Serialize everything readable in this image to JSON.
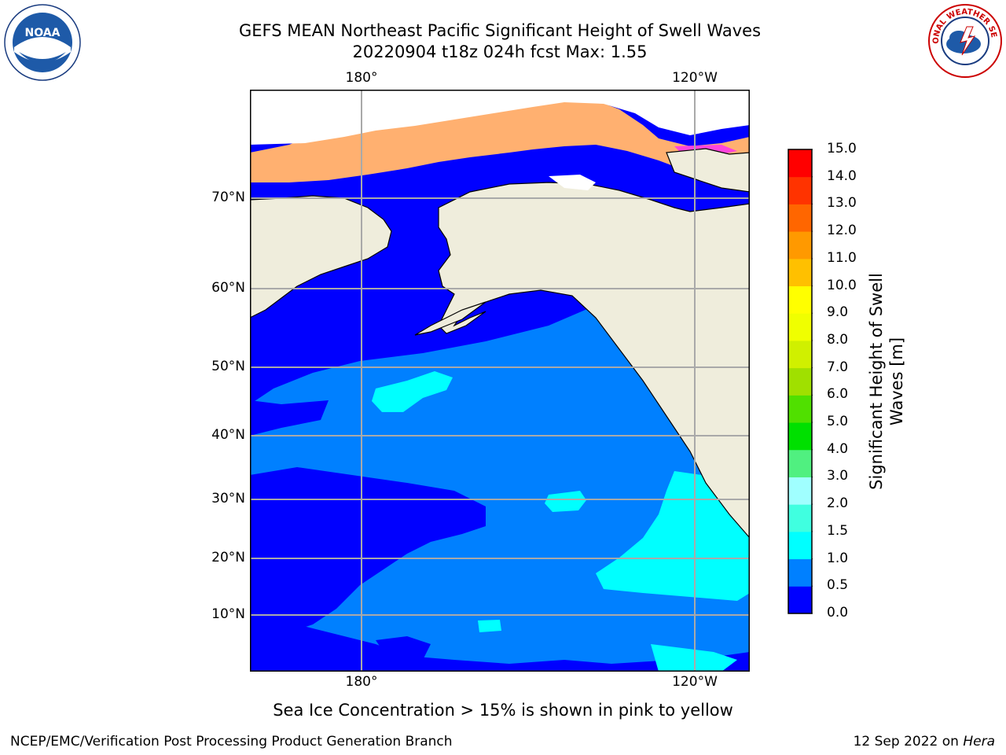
{
  "title": {
    "line1": "GEFS MEAN Northeast Pacific Significant Height of Swell Waves",
    "line2": "20220904 t18z 024h fcst   Max: 1.55"
  },
  "map": {
    "top_longitude_labels": [
      "180°",
      "120°W"
    ],
    "bottom_longitude_labels": [
      "180°",
      "120°W"
    ],
    "latitude_labels": [
      "70°N",
      "60°N",
      "50°N",
      "40°N",
      "30°N",
      "20°N",
      "10°N"
    ],
    "colors": {
      "land": "#efeddc",
      "ice_high": "#ffffff",
      "ice_pink": "#ff44dd",
      "ice_orange": "#ffb070",
      "gridline": "#a9a9a9"
    }
  },
  "colorbar": {
    "title": "Significant Height of Swell Waves [m]",
    "title_line1": "Significant Height of Swell",
    "title_line2": "Waves [m]",
    "ticks": [
      "0.0",
      "0.5",
      "1.0",
      "1.5",
      "2.0",
      "3.0",
      "4.0",
      "5.0",
      "6.0",
      "7.0",
      "8.0",
      "9.0",
      "10.0",
      "11.0",
      "12.0",
      "13.0",
      "14.0",
      "15.0"
    ],
    "colors": [
      "#0000ff",
      "#0080ff",
      "#00ffff",
      "#40ffe0",
      "#a0ffff",
      "#50f080",
      "#00e000",
      "#50e000",
      "#a0e000",
      "#d0f000",
      "#f0ff00",
      "#ffff00",
      "#ffc000",
      "#ff9900",
      "#ff6600",
      "#ff3300",
      "#ff0000"
    ]
  },
  "footnote": "Sea Ice Concentration > 15% is shown in pink to yellow",
  "credit": {
    "left": "NCEP/EMC/Verification Post Processing Product Generation Branch",
    "right_date": "12 Sep 2022 on",
    "right_host": "Hera"
  },
  "logos": {
    "noaa_text": "NOAA",
    "nws_text": "NATIONAL WEATHER SERVICE"
  }
}
